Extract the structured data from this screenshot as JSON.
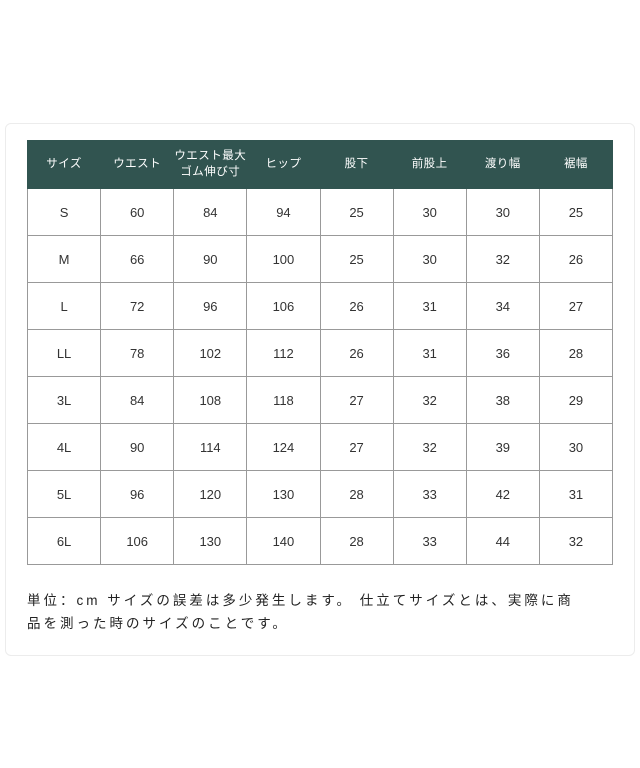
{
  "colors": {
    "header_bg": "#315450",
    "header_text": "#ffffff",
    "cell_border": "#999999",
    "card_border": "#ececec",
    "body_text": "#333333"
  },
  "table": {
    "headers": [
      "サイズ",
      "ウエスト",
      "ウエスト最大\nゴム伸び寸",
      "ヒップ",
      "股下",
      "前股上",
      "渡り幅",
      "裾幅"
    ],
    "rows": [
      [
        "S",
        "60",
        "84",
        "94",
        "25",
        "30",
        "30",
        "25"
      ],
      [
        "M",
        "66",
        "90",
        "100",
        "25",
        "30",
        "32",
        "26"
      ],
      [
        "L",
        "72",
        "96",
        "106",
        "26",
        "31",
        "34",
        "27"
      ],
      [
        "LL",
        "78",
        "102",
        "112",
        "26",
        "31",
        "36",
        "28"
      ],
      [
        "3L",
        "84",
        "108",
        "118",
        "27",
        "32",
        "38",
        "29"
      ],
      [
        "4L",
        "90",
        "114",
        "124",
        "27",
        "32",
        "39",
        "30"
      ],
      [
        "5L",
        "96",
        "120",
        "130",
        "28",
        "33",
        "42",
        "31"
      ],
      [
        "6L",
        "106",
        "130",
        "140",
        "28",
        "33",
        "44",
        "32"
      ]
    ]
  },
  "note": {
    "line1": "単位：cm サイズの誤差は多少発生します。 仕立てサイズとは、実際に商",
    "line2": "品を測った時のサイズのことです。"
  }
}
